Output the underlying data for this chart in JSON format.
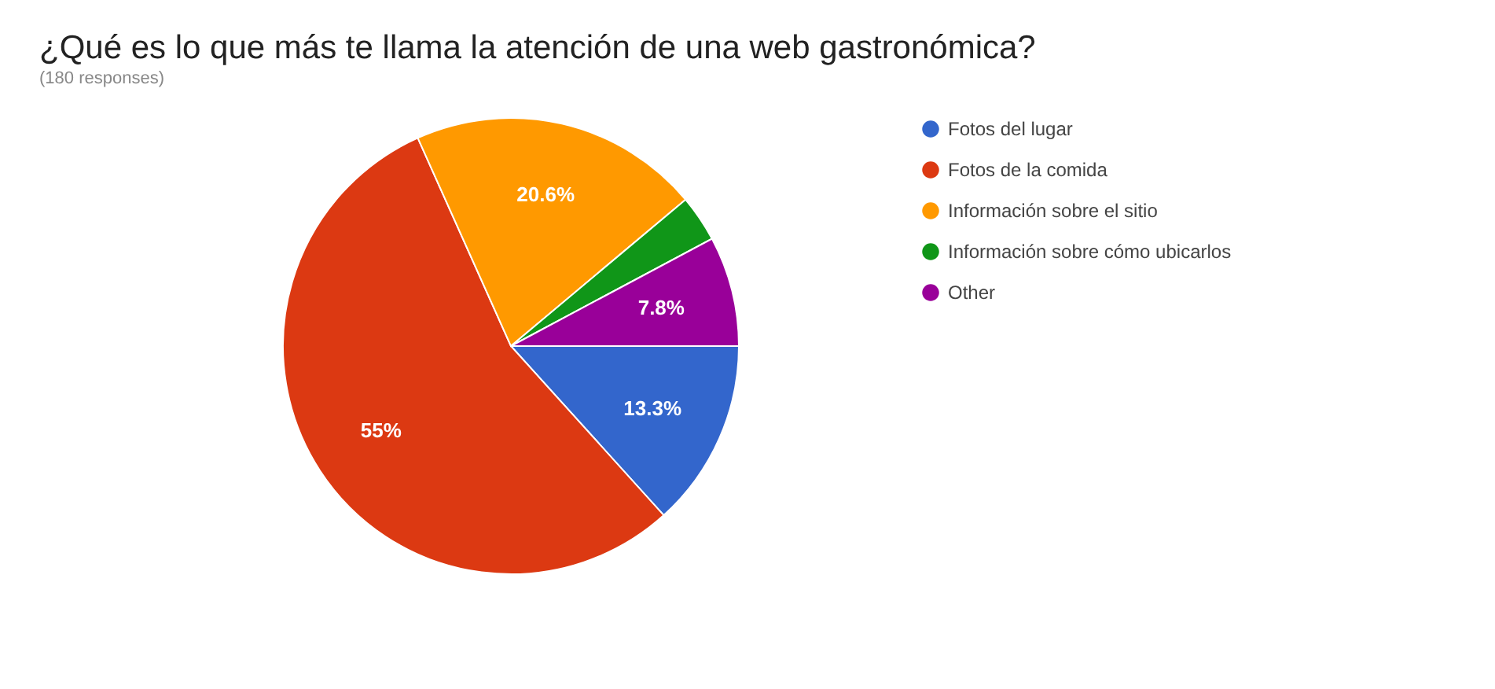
{
  "chart_data": {
    "type": "pie",
    "title": "¿Qué es lo que más te llama la atención de una web gastronómica?",
    "subtitle": "(180 responses)",
    "categories": [
      "Fotos del lugar",
      "Fotos de la comida",
      "Información sobre el sitio",
      "Información sobre cómo ubicarlos",
      "Other"
    ],
    "values": [
      13.3,
      55,
      20.6,
      3.3,
      7.8
    ],
    "colors": [
      "#3366cc",
      "#dc3912",
      "#ff9900",
      "#109618",
      "#990099"
    ],
    "value_labels": [
      "13.3%",
      "55%",
      "20.6%",
      null,
      "7.8%"
    ],
    "legend": "right"
  }
}
